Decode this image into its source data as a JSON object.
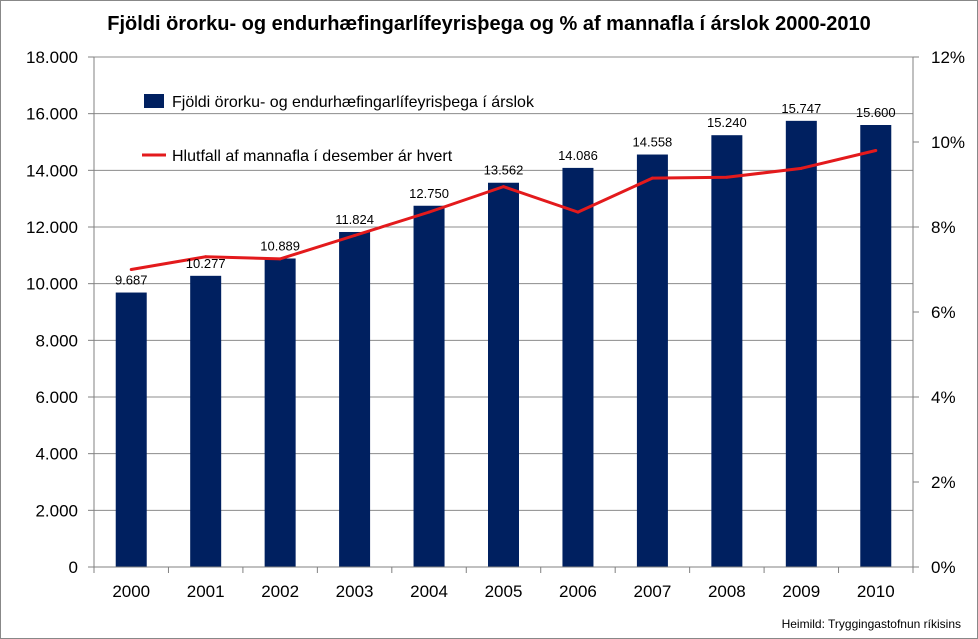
{
  "chart_data": {
    "type": "bar",
    "title": "Fjöldi örorku- og endurhæfingarlífeyrisþega og  % af mannafla í árslok 2000-2010",
    "categories": [
      "2000",
      "2001",
      "2002",
      "2003",
      "2004",
      "2005",
      "2006",
      "2007",
      "2008",
      "2009",
      "2010"
    ],
    "series": [
      {
        "name": "Fjöldi örorku- og endurhæfingarlífeyrisþega í árslok",
        "type": "bar",
        "axis": "left",
        "color": "#002060",
        "values": [
          9687,
          10277,
          10889,
          11824,
          12750,
          13562,
          14086,
          14558,
          15240,
          15747,
          15600
        ],
        "labels": [
          "9.687",
          "10.277",
          "10.889",
          "11.824",
          "12.750",
          "13.562",
          "14.086",
          "14.558",
          "15.240",
          "15.747",
          "15.600"
        ]
      },
      {
        "name": "Hlutfall af mannafla í desember ár hvert",
        "type": "line",
        "axis": "right",
        "color": "#e31a1c",
        "values": [
          7.0,
          7.3,
          7.25,
          7.8,
          8.35,
          8.95,
          8.35,
          9.15,
          9.17,
          9.38,
          9.8
        ]
      }
    ],
    "y_left": {
      "min": 0,
      "max": 18000,
      "step": 2000,
      "tick_labels": [
        "0",
        "2.000",
        "4.000",
        "6.000",
        "8.000",
        "10.000",
        "12.000",
        "14.000",
        "16.000",
        "18.000"
      ]
    },
    "y_right": {
      "min": 0,
      "max": 12,
      "step": 2,
      "tick_labels": [
        "0%",
        "2%",
        "4%",
        "6%",
        "8%",
        "10%",
        "12%"
      ]
    },
    "grid": true,
    "legend_position": "top-left",
    "source_note": "Heimild: Tryggingastofnun ríkisins"
  }
}
